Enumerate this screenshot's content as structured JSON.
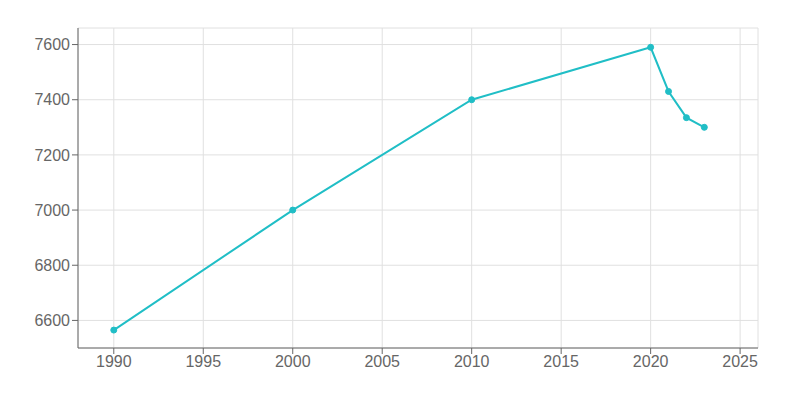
{
  "chart_data": {
    "type": "line",
    "x": [
      1990,
      2000,
      2010,
      2020,
      2021,
      2022,
      2023
    ],
    "values": [
      6565,
      7000,
      7400,
      7590,
      7430,
      7335,
      7300
    ],
    "color": "#20bec6",
    "marker": "circle",
    "xlim": [
      1988,
      2026
    ],
    "ylim": [
      6500,
      7660
    ],
    "xticks": [
      1990,
      1995,
      2000,
      2005,
      2010,
      2015,
      2020,
      2025
    ],
    "yticks": [
      6600,
      6800,
      7000,
      7200,
      7400,
      7600
    ],
    "grid": true
  }
}
